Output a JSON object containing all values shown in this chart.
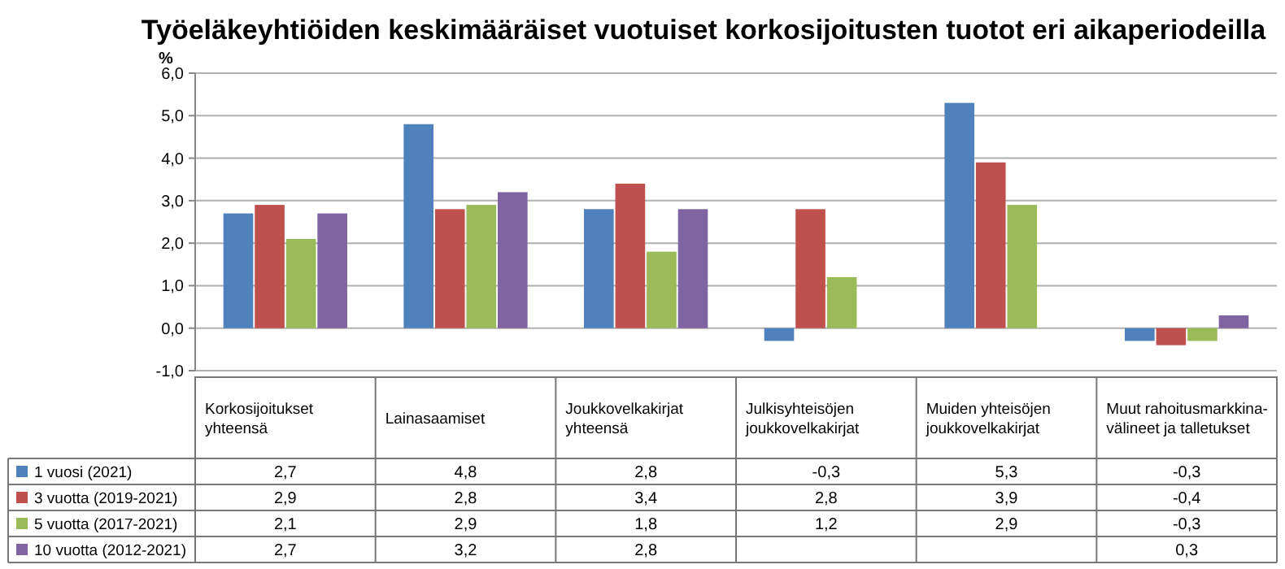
{
  "chart_data": {
    "type": "bar",
    "title": "Työeläkeyhtiöiden keskimääräiset vuotuiset korkosijoitusten tuotot eri aikaperiodeilla",
    "ylabel": "%",
    "categories": [
      "Korkosijoitukset yhteensä",
      "Lainasaamiset",
      "Joukkovelkakirjat yhteensä",
      "Julkisyhteisöjen joukkovelkakirjat",
      "Muiden yhteisöjen joukkovelkakirjat",
      "Muut rahoitusmarkkina-välineet ja talletukset"
    ],
    "series": [
      {
        "name": "1 vuosi (2021)",
        "color": "#4f81bd",
        "values": [
          2.7,
          4.8,
          2.8,
          -0.3,
          5.3,
          -0.3
        ],
        "value_labels": [
          "2,7",
          "4,8",
          "2,8",
          "-0,3",
          "5,3",
          "-0,3"
        ]
      },
      {
        "name": "3 vuotta (2019-2021)",
        "color": "#c0504d",
        "values": [
          2.9,
          2.8,
          3.4,
          2.8,
          3.9,
          -0.4
        ],
        "value_labels": [
          "2,9",
          "2,8",
          "3,4",
          "2,8",
          "3,9",
          "-0,4"
        ]
      },
      {
        "name": "5 vuotta (2017-2021)",
        "color": "#9bbb59",
        "values": [
          2.1,
          2.9,
          1.8,
          1.2,
          2.9,
          -0.3
        ],
        "value_labels": [
          "2,1",
          "2,9",
          "1,8",
          "1,2",
          "2,9",
          "-0,3"
        ]
      },
      {
        "name": "10 vuotta (2012-2021)",
        "color": "#8064a2",
        "values": [
          2.7,
          3.2,
          2.8,
          null,
          null,
          0.3
        ],
        "value_labels": [
          "2,7",
          "3,2",
          "2,8",
          null,
          null,
          "0,3"
        ]
      }
    ],
    "ylim": [
      -1,
      6
    ],
    "yticks": [
      {
        "value": -1,
        "label": "-1,0"
      },
      {
        "value": 0,
        "label": "0,0"
      },
      {
        "value": 1,
        "label": "1,0"
      },
      {
        "value": 2,
        "label": "2,0"
      },
      {
        "value": 3,
        "label": "3,0"
      },
      {
        "value": 4,
        "label": "4,0"
      },
      {
        "value": 5,
        "label": "5,0"
      },
      {
        "value": 6,
        "label": "6,0"
      }
    ],
    "grid": "y",
    "legend": "bottom"
  }
}
